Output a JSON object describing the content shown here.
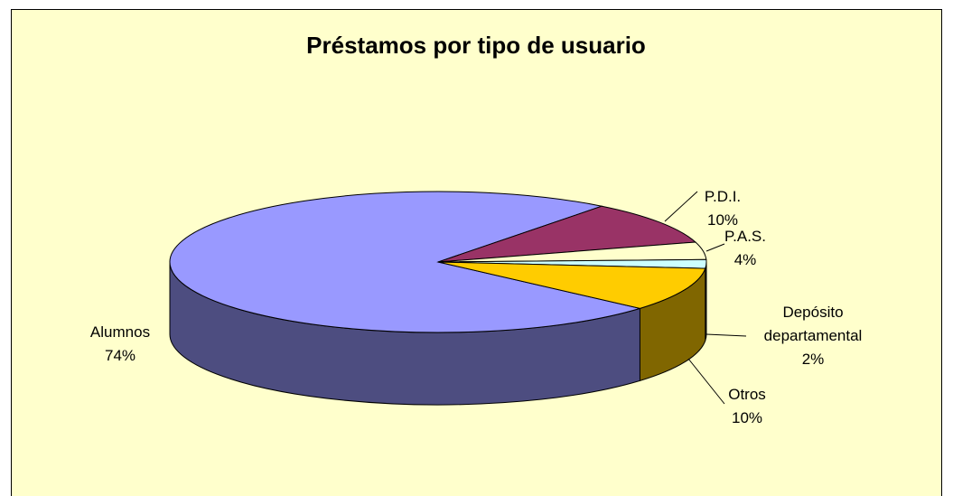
{
  "chart_data": {
    "type": "pie3d",
    "title": "Préstamos por tipo de usuario",
    "categories": [
      "Alumnos",
      "P.D.I.",
      "P.A.S.",
      "Depósito departamental",
      "Otros"
    ],
    "values": [
      74,
      10,
      4,
      2,
      10
    ],
    "value_labels": [
      "74%",
      "10%",
      "4%",
      "2%",
      "10%"
    ],
    "colors": [
      "#9999ff",
      "#993366",
      "#ffffcc",
      "#ccffff",
      "#ffcc00"
    ]
  }
}
